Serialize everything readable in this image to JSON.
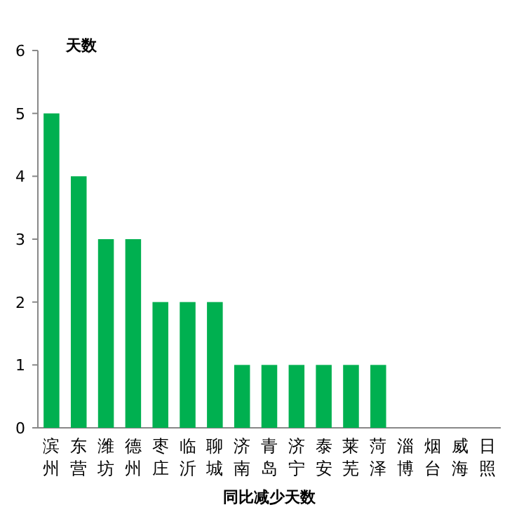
{
  "chart_data": {
    "type": "bar",
    "ylabel": "天数",
    "xlabel": "同比减少天数",
    "categories": [
      "滨州",
      "东营",
      "潍坊",
      "德州",
      "枣庄",
      "临沂",
      "聊城",
      "济南",
      "青岛",
      "济宁",
      "泰安",
      "莱芜",
      "菏泽",
      "淄博",
      "烟台",
      "威海",
      "日照"
    ],
    "values": [
      5,
      4,
      3,
      3,
      2,
      2,
      2,
      1,
      1,
      1,
      1,
      1,
      1,
      0,
      0,
      0,
      0
    ],
    "color": "#00b050",
    "ylim": [
      0,
      6
    ],
    "yticks": [
      0,
      1,
      2,
      3,
      4,
      5,
      6
    ]
  }
}
